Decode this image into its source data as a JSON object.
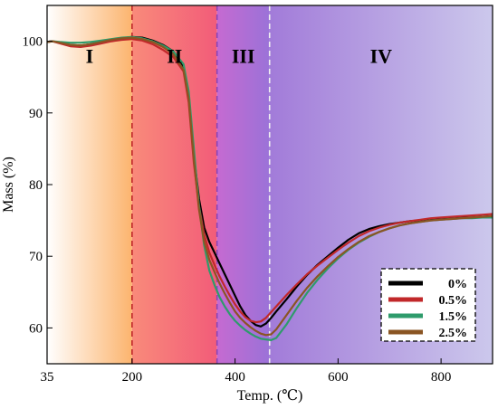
{
  "chart_data": {
    "type": "line",
    "xlabel": "Temp. (℃)",
    "ylabel": "Mass (%)",
    "xlim": [
      35,
      900
    ],
    "ylim": [
      55,
      105
    ],
    "x_ticks": [
      35,
      200,
      400,
      600,
      800
    ],
    "y_ticks": [
      60,
      70,
      80,
      90,
      100
    ],
    "grid": false,
    "legend_position": "bottom-right",
    "regions": [
      {
        "label": "I",
        "from": 35,
        "to": 200,
        "colors": [
          "#ffffff",
          "#fcb46e"
        ]
      },
      {
        "label": "II",
        "from": 200,
        "to": 365,
        "colors": [
          "#f98a7a",
          "#f25c79"
        ]
      },
      {
        "label": "III",
        "from": 365,
        "to": 467,
        "colors": [
          "#c56ad1",
          "#9b72d8"
        ]
      },
      {
        "label": "IV",
        "from": 467,
        "to": 900,
        "colors": [
          "#a27bd9",
          "#ccc8ec"
        ]
      }
    ],
    "boundaries": [
      {
        "x": 200,
        "color": "#c0282a"
      },
      {
        "x": 365,
        "color": "#8a45b8"
      },
      {
        "x": 467,
        "color": "#f0f0f0"
      }
    ],
    "series": [
      {
        "name": "0%",
        "color": "#000000",
        "x": [
          35,
          45,
          60,
          80,
          100,
          120,
          140,
          160,
          180,
          200,
          220,
          240,
          260,
          280,
          300,
          310,
          320,
          330,
          340,
          350,
          360,
          370,
          380,
          390,
          400,
          410,
          420,
          430,
          440,
          450,
          460,
          470,
          480,
          500,
          520,
          540,
          560,
          580,
          600,
          620,
          640,
          660,
          680,
          700,
          720,
          740,
          760,
          780,
          800,
          820,
          840,
          860,
          880,
          900
        ],
        "y": [
          99.9,
          100.0,
          99.8,
          99.5,
          99.4,
          99.6,
          99.9,
          100.2,
          100.4,
          100.6,
          100.5,
          100.1,
          99.5,
          98.6,
          96.5,
          92.0,
          84.0,
          78.0,
          74.0,
          72.0,
          70.5,
          69.0,
          67.5,
          66.0,
          64.5,
          63.0,
          61.8,
          61.0,
          60.4,
          60.2,
          60.6,
          61.4,
          62.3,
          64.0,
          65.8,
          67.4,
          68.8,
          70.0,
          71.2,
          72.3,
          73.2,
          73.8,
          74.2,
          74.5,
          74.7,
          74.9,
          75.0,
          75.1,
          75.2,
          75.3,
          75.4,
          75.4,
          75.5,
          75.6
        ]
      },
      {
        "name": "0.5%",
        "color": "#c1282a",
        "x": [
          35,
          45,
          60,
          80,
          100,
          120,
          140,
          160,
          180,
          200,
          220,
          240,
          260,
          280,
          300,
          310,
          320,
          330,
          340,
          350,
          360,
          370,
          380,
          390,
          400,
          410,
          420,
          430,
          440,
          450,
          460,
          470,
          480,
          500,
          520,
          540,
          560,
          580,
          600,
          620,
          640,
          660,
          680,
          700,
          720,
          740,
          760,
          780,
          800,
          820,
          840,
          860,
          880,
          900
        ],
        "y": [
          99.9,
          100.0,
          99.7,
          99.3,
          99.2,
          99.4,
          99.7,
          100.0,
          100.2,
          100.3,
          100.1,
          99.6,
          98.8,
          97.8,
          95.8,
          91.5,
          83.0,
          77.0,
          73.0,
          70.5,
          68.8,
          67.2,
          65.8,
          64.5,
          63.3,
          62.3,
          61.5,
          61.0,
          60.8,
          60.9,
          61.4,
          62.2,
          63.0,
          64.6,
          66.1,
          67.5,
          68.7,
          69.8,
          70.9,
          71.9,
          72.8,
          73.5,
          74.0,
          74.4,
          74.7,
          74.9,
          75.1,
          75.3,
          75.4,
          75.5,
          75.6,
          75.7,
          75.8,
          75.9
        ]
      },
      {
        "name": "1.5%",
        "color": "#2e9b6b",
        "x": [
          35,
          45,
          60,
          80,
          100,
          120,
          140,
          160,
          180,
          200,
          220,
          240,
          260,
          280,
          300,
          310,
          320,
          330,
          340,
          350,
          360,
          370,
          380,
          390,
          400,
          410,
          420,
          430,
          440,
          450,
          460,
          470,
          480,
          500,
          520,
          540,
          560,
          580,
          600,
          620,
          640,
          660,
          680,
          700,
          720,
          740,
          760,
          780,
          800,
          820,
          840,
          860,
          880,
          900
        ],
        "y": [
          99.9,
          100.0,
          99.9,
          99.8,
          99.8,
          99.9,
          100.1,
          100.3,
          100.5,
          100.6,
          100.4,
          100.0,
          99.4,
          98.6,
          96.8,
          93.0,
          85.0,
          77.0,
          71.5,
          68.0,
          66.0,
          64.3,
          63.0,
          61.9,
          61.0,
          60.3,
          59.7,
          59.2,
          58.8,
          58.5,
          58.4,
          58.3,
          58.6,
          60.5,
          62.8,
          64.9,
          66.7,
          68.3,
          69.7,
          70.9,
          71.9,
          72.7,
          73.4,
          73.9,
          74.3,
          74.6,
          74.8,
          75.0,
          75.1,
          75.2,
          75.3,
          75.3,
          75.4,
          75.4
        ]
      },
      {
        "name": "2.5%",
        "color": "#8a5523",
        "x": [
          35,
          45,
          60,
          80,
          100,
          120,
          140,
          160,
          180,
          200,
          220,
          240,
          260,
          280,
          300,
          310,
          320,
          330,
          340,
          350,
          360,
          370,
          380,
          390,
          400,
          410,
          420,
          430,
          440,
          450,
          460,
          470,
          480,
          500,
          520,
          540,
          560,
          580,
          600,
          620,
          640,
          660,
          680,
          700,
          720,
          740,
          760,
          780,
          800,
          820,
          840,
          860,
          880,
          900
        ],
        "y": [
          99.9,
          100.0,
          99.8,
          99.5,
          99.4,
          99.6,
          99.9,
          100.2,
          100.4,
          100.5,
          100.3,
          99.9,
          99.2,
          98.2,
          96.0,
          92.0,
          83.5,
          76.5,
          72.0,
          69.5,
          67.8,
          66.2,
          64.8,
          63.5,
          62.3,
          61.4,
          60.7,
          60.1,
          59.6,
          59.2,
          59.0,
          59.1,
          59.8,
          61.8,
          63.8,
          65.6,
          67.2,
          68.6,
          69.9,
          71.0,
          72.0,
          72.8,
          73.4,
          73.9,
          74.3,
          74.6,
          74.8,
          75.0,
          75.1,
          75.2,
          75.3,
          75.4,
          75.5,
          75.6
        ]
      }
    ]
  }
}
